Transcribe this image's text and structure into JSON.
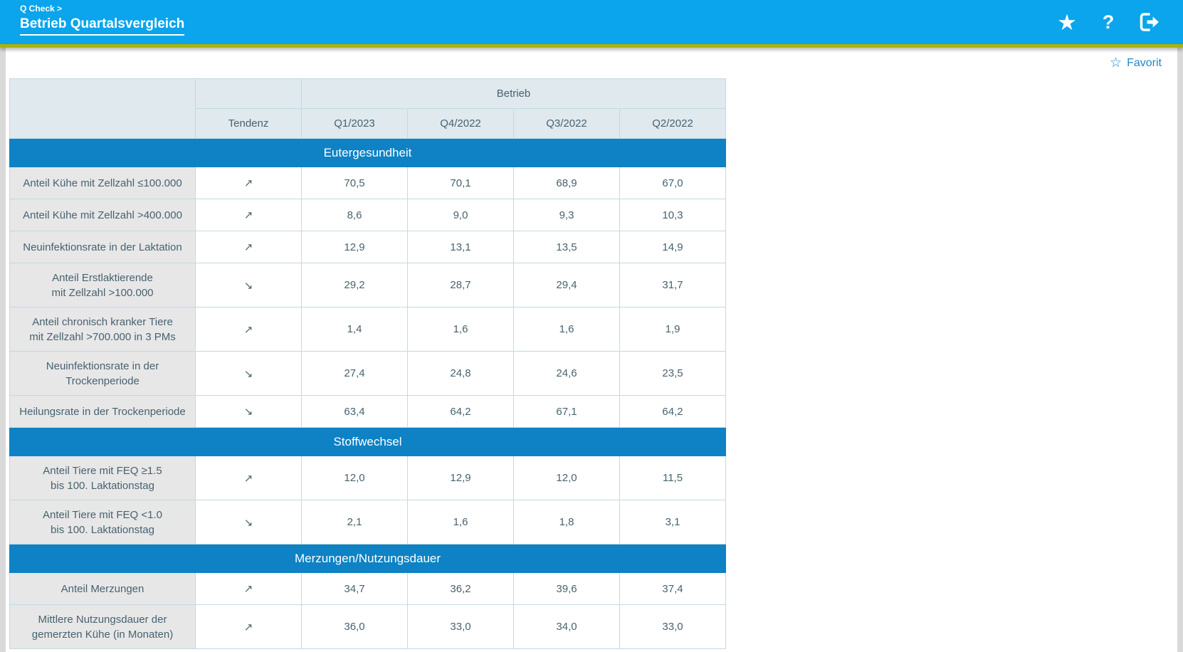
{
  "topbar": {
    "breadcrumb": "Q Check >",
    "title": "Betrieb Quartalsvergleich",
    "help_label": "?"
  },
  "favorit": {
    "star": "☆",
    "label": "Favorit"
  },
  "glyphs": {
    "star_filled": "★",
    "trend_up": "↗",
    "trend_down": "↘"
  },
  "table": {
    "group_header": "Betrieb",
    "col_headers": [
      "Tendenz",
      "Q1/2023",
      "Q4/2022",
      "Q3/2022",
      "Q2/2022"
    ],
    "sections": [
      {
        "title": "Eutergesundheit",
        "rows": [
          {
            "label": "Anteil Kühe mit Zellzahl ≤100.000",
            "trend": "up",
            "values": [
              "70,5",
              "70,1",
              "68,9",
              "67,0"
            ]
          },
          {
            "label": "Anteil Kühe mit Zellzahl >400.000",
            "trend": "up",
            "values": [
              "8,6",
              "9,0",
              "9,3",
              "10,3"
            ]
          },
          {
            "label": "Neuinfektionsrate in der Laktation",
            "trend": "up",
            "values": [
              "12,9",
              "13,1",
              "13,5",
              "14,9"
            ]
          },
          {
            "label": "Anteil Erstlaktierende\nmit Zellzahl >100.000",
            "trend": "down",
            "values": [
              "29,2",
              "28,7",
              "29,4",
              "31,7"
            ]
          },
          {
            "label": "Anteil chronisch kranker Tiere\nmit Zellzahl >700.000 in 3 PMs",
            "trend": "up",
            "values": [
              "1,4",
              "1,6",
              "1,6",
              "1,9"
            ]
          },
          {
            "label": "Neuinfektionsrate in der\nTrockenperiode",
            "trend": "down",
            "values": [
              "27,4",
              "24,8",
              "24,6",
              "23,5"
            ]
          },
          {
            "label": "Heilungsrate in der Trockenperiode",
            "trend": "down",
            "values": [
              "63,4",
              "64,2",
              "67,1",
              "64,2"
            ]
          }
        ]
      },
      {
        "title": "Stoffwechsel",
        "rows": [
          {
            "label": "Anteil Tiere mit FEQ ≥1.5\nbis 100. Laktationstag",
            "trend": "up",
            "values": [
              "12,0",
              "12,9",
              "12,0",
              "11,5"
            ]
          },
          {
            "label": "Anteil Tiere mit FEQ <1.0\nbis 100. Laktationstag",
            "trend": "down",
            "values": [
              "2,1",
              "1,6",
              "1,8",
              "3,1"
            ]
          }
        ]
      },
      {
        "title": "Merzungen/Nutzungsdauer",
        "rows": [
          {
            "label": "Anteil Merzungen",
            "trend": "up",
            "values": [
              "34,7",
              "36,2",
              "39,6",
              "37,4"
            ]
          },
          {
            "label": "Mittlere Nutzungsdauer der\ngemerzten Kühe (in Monaten)",
            "trend": "up",
            "values": [
              "36,0",
              "33,0",
              "34,0",
              "33,0"
            ]
          }
        ]
      }
    ]
  },
  "colors": {
    "topbar_blue": "#0aa5ec",
    "accent_olive": "#abb40b",
    "section_blue": "#0e82c4",
    "header_cell_bg": "#dfe9ee",
    "label_cell_bg": "#e7e7e7",
    "table_border": "#c2d9e1",
    "table_text": "#48626f",
    "link_blue": "#1e88c8"
  }
}
